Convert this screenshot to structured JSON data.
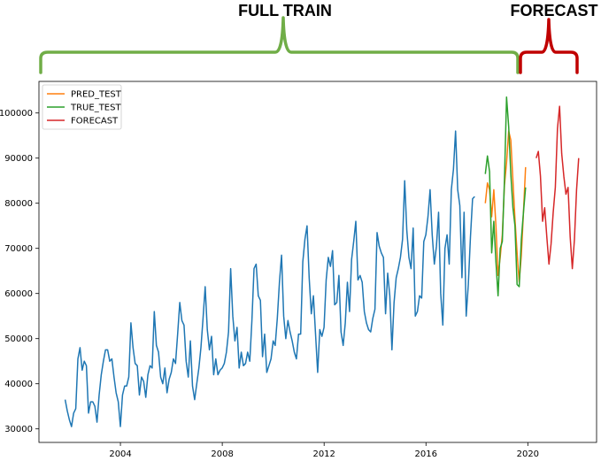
{
  "annotations": {
    "full_train_label": "FULL TRAIN",
    "forecast_label": "FORECAST",
    "full_train_color": "#70ad47",
    "forecast_color": "#c00000"
  },
  "chart_data": {
    "type": "line",
    "xlim": [
      2000.8,
      2022.7
    ],
    "ylim": [
      27000,
      107000
    ],
    "xticks": [
      2004,
      2008,
      2012,
      2016,
      2020
    ],
    "yticks": [
      30000,
      40000,
      50000,
      60000,
      70000,
      80000,
      90000,
      100000
    ],
    "xtick_labels": [
      "2004",
      "2008",
      "2012",
      "2016",
      "2020"
    ],
    "ytick_labels": [
      "30000",
      "40000",
      "50000",
      "60000",
      "70000",
      "80000",
      "90000",
      "100000"
    ],
    "legend_position": "upper-left",
    "series": [
      {
        "color": "#1f77b4",
        "x_start": 2001.83,
        "step": 0.08333,
        "values": [
          36500,
          34000,
          32000,
          30500,
          33500,
          34500,
          45500,
          48000,
          43000,
          45000,
          44000,
          33500,
          36000,
          36000,
          35000,
          31500,
          37500,
          42000,
          45000,
          47500,
          47500,
          45000,
          45500,
          41500,
          38000,
          36000,
          30500,
          37500,
          39500,
          39500,
          41500,
          53500,
          48000,
          44500,
          44000,
          37500,
          41500,
          40500,
          37000,
          42000,
          44000,
          43500,
          56000,
          48500,
          47000,
          41500,
          40000,
          43500,
          38000,
          41000,
          42500,
          45500,
          44500,
          51000,
          58000,
          54000,
          53000,
          45000,
          41500,
          49500,
          39500,
          36500,
          40000,
          43500,
          48000,
          54500,
          61500,
          52000,
          47500,
          50500,
          42000,
          45500,
          42000,
          43000,
          43500,
          44500,
          47000,
          51500,
          65500,
          55000,
          49500,
          52500,
          43500,
          47000,
          44000,
          44500,
          47000,
          45000,
          54000,
          65500,
          66500,
          59500,
          58500,
          46000,
          51000,
          42500,
          44000,
          45500,
          49500,
          48500,
          54500,
          62500,
          68500,
          55000,
          50000,
          54000,
          51500,
          49500,
          47000,
          45500,
          51000,
          51000,
          67000,
          72000,
          75000,
          63500,
          55500,
          59500,
          51000,
          42500,
          52000,
          50500,
          52500,
          63000,
          68000,
          66000,
          69500,
          57500,
          58000,
          64000,
          51500,
          48500,
          53500,
          62500,
          56000,
          67500,
          71500,
          76000,
          63000,
          64000,
          62500,
          56000,
          53500,
          52000,
          51500,
          54500,
          56500,
          73500,
          70500,
          69000,
          68000,
          55500,
          64500,
          59500,
          47500,
          58000,
          63500,
          65500,
          68000,
          72000,
          85000,
          74000,
          68000,
          65500,
          74500,
          55000,
          56000,
          59500,
          59000,
          71500,
          73000,
          77000,
          83000,
          73000,
          66500,
          70500,
          78000,
          60000,
          53000,
          70000,
          73000,
          66500,
          83000,
          87500,
          96000,
          83000,
          79500,
          63500,
          78000,
          55000,
          62000,
          72500,
          81000,
          81500
        ]
      },
      {
        "name": "PRED_TEST",
        "color": "#ff7f0e",
        "x_start": 2018.33,
        "step": 0.08333,
        "values": [
          80000,
          84500,
          83000,
          77000,
          83000,
          75000,
          64000,
          68000,
          73000,
          84000,
          89000,
          96000,
          94000,
          85000,
          76500,
          69000,
          62500,
          68500,
          78000,
          88000
        ]
      },
      {
        "name": "TRUE_TEST",
        "color": "#2ca02c",
        "x_start": 2018.33,
        "step": 0.08333,
        "values": [
          86500,
          90500,
          87000,
          69000,
          76000,
          67000,
          59500,
          70000,
          71500,
          85000,
          103500,
          97000,
          86500,
          79000,
          75000,
          62000,
          61500,
          72000,
          78000,
          83500
        ]
      },
      {
        "name": "FORECAST",
        "color": "#d62728",
        "x_start": 2020.33,
        "step": 0.08333,
        "values": [
          90000,
          91500,
          86000,
          76000,
          79000,
          72500,
          66500,
          71000,
          78000,
          83500,
          96500,
          101500,
          91000,
          86000,
          82000,
          83500,
          72500,
          65500,
          72000,
          83000,
          90000
        ]
      }
    ]
  }
}
